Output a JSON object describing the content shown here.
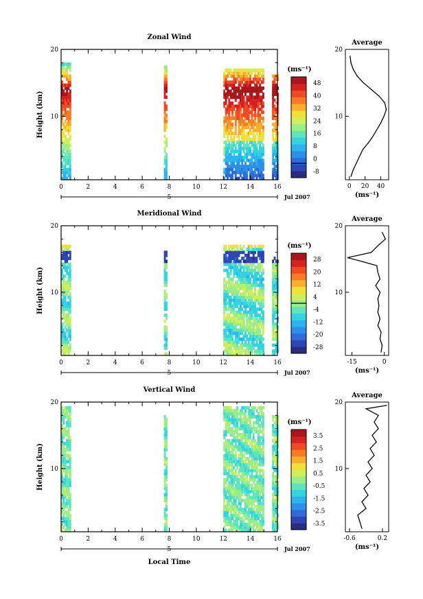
{
  "chart_data": [
    {
      "type": "heatmap",
      "title": "Zonal Wind",
      "xlabel": "",
      "ylabel": "Height (km)",
      "x_ticks": [
        "0",
        "2",
        "4",
        "6",
        "8",
        "10",
        "12",
        "14",
        "16"
      ],
      "y_ticks": [
        "10",
        "20"
      ],
      "xlim": [
        0,
        16
      ],
      "ylim": [
        0.5,
        20
      ],
      "date_label": "Jul 2007",
      "day_marker": "5",
      "colorbar": {
        "unit": "(ms⁻¹)",
        "labels": [
          "48",
          "40",
          "32",
          "24",
          "16",
          "8",
          "0",
          "-8"
        ],
        "range": [
          -8,
          48
        ],
        "zero_line": 0
      },
      "data_regions": [
        {
          "x_start": 0.0,
          "x_end": 0.7,
          "y_start": 0.5,
          "y_end": 18.0
        },
        {
          "x_start": 7.6,
          "x_end": 7.8,
          "y_start": 0.5,
          "y_end": 17.5
        },
        {
          "x_start": 12.0,
          "x_end": 15.0,
          "y_start": 0.5,
          "y_end": 17.0
        },
        {
          "x_start": 15.6,
          "x_end": 16.0,
          "y_start": 0.5,
          "y_end": 16.0
        }
      ],
      "profile": {
        "title": "Average",
        "unit": "(ms⁻¹)",
        "x_ticks": [
          "0",
          "20",
          "40"
        ],
        "xlim": [
          -5,
          50
        ],
        "y_ticks": [
          "10",
          "20"
        ],
        "x": [
          2,
          5,
          9,
          13,
          17,
          24,
          30,
          35,
          40,
          44,
          47,
          45,
          38,
          28,
          18,
          10,
          5,
          2,
          1
        ],
        "y": [
          1,
          2,
          3,
          4,
          5,
          6,
          7,
          8,
          9,
          10,
          11,
          12,
          13,
          14,
          15,
          16,
          17,
          18,
          19
        ]
      }
    },
    {
      "type": "heatmap",
      "title": "Meridional Wind",
      "xlabel": "",
      "ylabel": "Height (km)",
      "x_ticks": [
        "0",
        "2",
        "4",
        "6",
        "8",
        "10",
        "12",
        "14",
        "16"
      ],
      "y_ticks": [
        "10",
        "20"
      ],
      "xlim": [
        0,
        16
      ],
      "ylim": [
        0.5,
        20
      ],
      "date_label": "Jul 2007",
      "day_marker": "5",
      "colorbar": {
        "unit": "(ms⁻¹)",
        "labels": [
          "28",
          "20",
          "12",
          "4",
          "-4",
          "-12",
          "-20",
          "-28"
        ],
        "range": [
          -28,
          28
        ],
        "zero_line": 0
      },
      "data_regions": [
        {
          "x_start": 0.0,
          "x_end": 0.7,
          "y_start": 0.5,
          "y_end": 17.0
        },
        {
          "x_start": 7.6,
          "x_end": 7.8,
          "y_start": 0.5,
          "y_end": 16.0
        },
        {
          "x_start": 12.0,
          "x_end": 15.0,
          "y_start": 0.5,
          "y_end": 17.0
        },
        {
          "x_start": 15.6,
          "x_end": 16.0,
          "y_start": 0.5,
          "y_end": 15.0
        }
      ],
      "profile": {
        "title": "Average",
        "unit": "(ms⁻¹)",
        "x_ticks": [
          "-15",
          "0"
        ],
        "xlim": [
          -18,
          2
        ],
        "y_ticks": [
          "10",
          "20"
        ],
        "x": [
          -1.5,
          -1,
          -2,
          -1.5,
          -3,
          -2,
          -3,
          -2.5,
          -3,
          -2,
          -4,
          -2,
          -3,
          -3.5,
          -10,
          -17,
          -6,
          -3,
          0.5,
          -1
        ],
        "y": [
          1,
          2,
          3,
          4,
          5,
          6,
          7,
          8,
          9,
          10,
          11,
          12,
          13,
          14,
          14.6,
          15.2,
          16,
          17,
          18,
          19
        ]
      }
    },
    {
      "type": "heatmap",
      "title": "Vertical Wind",
      "xlabel": "Local Time",
      "ylabel": "Height (km)",
      "x_ticks": [
        "0",
        "2",
        "4",
        "6",
        "8",
        "10",
        "12",
        "14",
        "16"
      ],
      "y_ticks": [
        "10",
        "20"
      ],
      "xlim": [
        0,
        16
      ],
      "ylim": [
        0.5,
        20
      ],
      "date_label": "Jul 2007",
      "day_marker": "5",
      "colorbar": {
        "unit": "(ms⁻¹)",
        "labels": [
          "3.5",
          "2.5",
          "1.5",
          "0.5",
          "-0.5",
          "-1.5",
          "-2.5",
          "-3.5"
        ],
        "range": [
          -3.5,
          3.5
        ],
        "zero_line": null
      },
      "data_regions": [
        {
          "x_start": 0.0,
          "x_end": 0.7,
          "y_start": 0.5,
          "y_end": 19.0
        },
        {
          "x_start": 7.6,
          "x_end": 7.8,
          "y_start": 0.5,
          "y_end": 18.0
        },
        {
          "x_start": 12.0,
          "x_end": 15.0,
          "y_start": 0.5,
          "y_end": 19.0
        },
        {
          "x_start": 15.6,
          "x_end": 16.0,
          "y_start": 0.5,
          "y_end": 18.0
        }
      ],
      "profile": {
        "title": "Average",
        "unit": "(ms⁻¹)",
        "x_ticks": [
          "-0.6",
          "0.2"
        ],
        "xlim": [
          -0.7,
          0.35
        ],
        "y_ticks": [
          "10",
          "20"
        ],
        "x": [
          -0.3,
          -0.35,
          -0.4,
          -0.2,
          -0.3,
          -0.15,
          -0.25,
          -0.1,
          -0.2,
          -0.05,
          -0.15,
          0.0,
          -0.1,
          0.05,
          -0.05,
          0.1,
          0.0,
          0.1,
          -0.2,
          0.3
        ],
        "y": [
          1,
          2,
          3,
          4,
          5,
          6,
          7,
          8,
          9,
          10,
          11,
          12,
          13,
          14,
          15,
          16,
          17,
          18,
          19,
          19.5
        ]
      }
    }
  ]
}
